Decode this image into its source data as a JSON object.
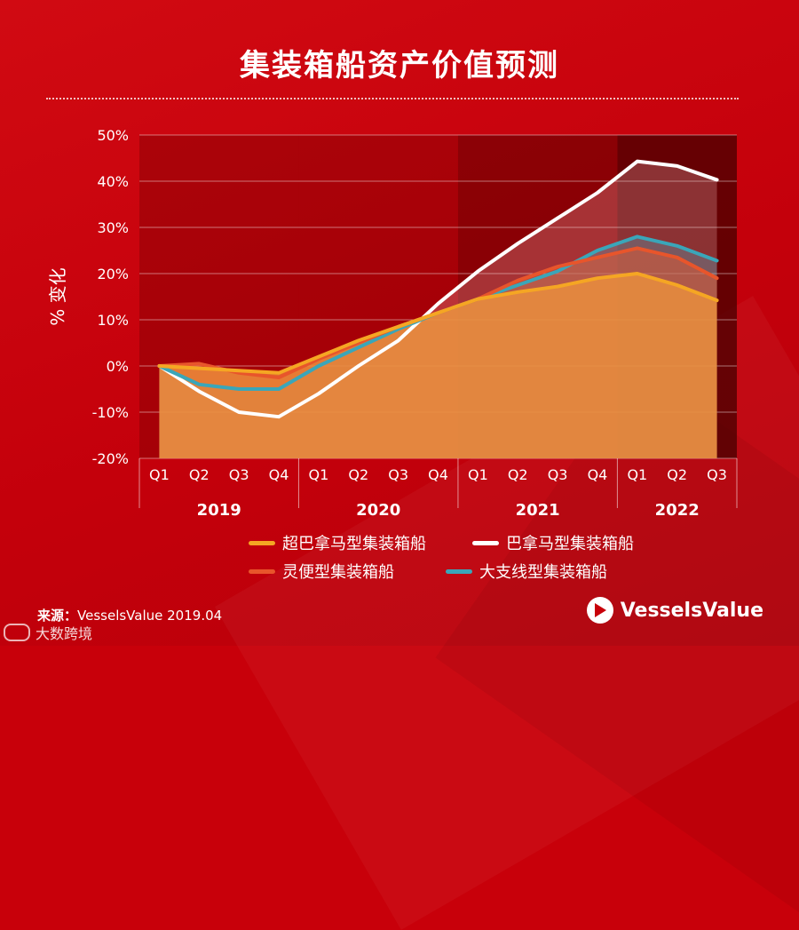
{
  "chart_data": {
    "type": "area",
    "title": "集装箱船资产价值预测",
    "ylabel": "% 变化",
    "xlabel": "",
    "ylim": [
      -20,
      50
    ],
    "yticks": [
      50,
      40,
      30,
      20,
      10,
      0,
      -10,
      -20
    ],
    "ytick_labels": [
      "50%",
      "40%",
      "30%",
      "20%",
      "10%",
      "0%",
      "-10%",
      "-20%"
    ],
    "categories": [
      "Q1",
      "Q2",
      "Q3",
      "Q4",
      "Q1",
      "Q2",
      "Q3",
      "Q4",
      "Q1",
      "Q2",
      "Q3",
      "Q4",
      "Q1",
      "Q2",
      "Q3"
    ],
    "years": [
      {
        "label": "2019",
        "quarters": 4
      },
      {
        "label": "2020",
        "quarters": 4
      },
      {
        "label": "2021",
        "quarters": 4
      },
      {
        "label": "2022",
        "quarters": 3
      }
    ],
    "series": [
      {
        "name": "超巴拿马型集装箱船",
        "color": "#f5a623",
        "values": [
          0,
          -0.5,
          -1,
          -1.5,
          2,
          5.5,
          8.5,
          11.5,
          14.5,
          16,
          17.2,
          19,
          20,
          17.5,
          14.2
        ]
      },
      {
        "name": "巴拿马型集装箱船",
        "color": "#ffffff",
        "values": [
          0,
          -5.5,
          -10,
          -11,
          -6,
          0,
          5.5,
          13.5,
          20.5,
          26.5,
          32,
          37.5,
          44.3,
          43.3,
          40.3
        ]
      },
      {
        "name": "灵便型集装箱船",
        "color": "#e8552b",
        "values": [
          0,
          0.5,
          -1.5,
          -2.5,
          1.5,
          5,
          8.5,
          11.5,
          14.5,
          18.5,
          21.5,
          23.5,
          25.5,
          23.5,
          19
        ]
      },
      {
        "name": "大支线型集装箱船",
        "color": "#3aa6b9",
        "values": [
          0,
          -4,
          -5,
          -5,
          0,
          4,
          8,
          11.5,
          14.5,
          17.5,
          20.5,
          25,
          28,
          26,
          22.8
        ]
      }
    ]
  },
  "footer": {
    "source_label": "来源：",
    "source_text": "VesselsValue 2019.04",
    "brand": "VesselsValue",
    "watermark": "大数跨境"
  }
}
